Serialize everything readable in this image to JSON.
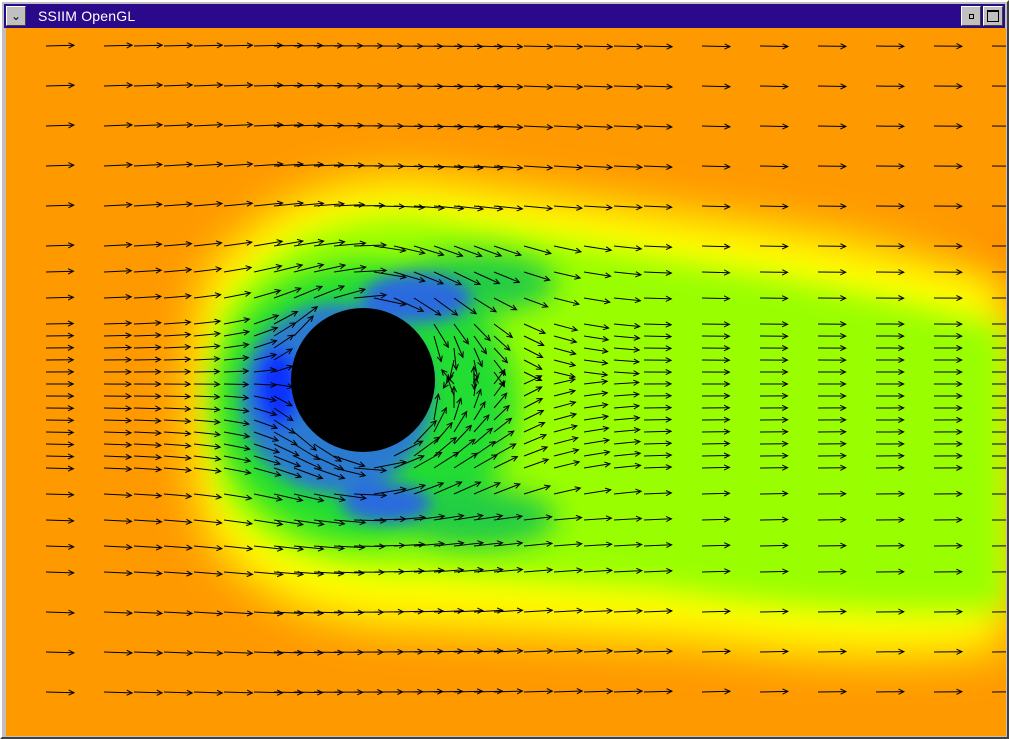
{
  "window": {
    "title": "SSIIM OpenGL",
    "sysmenu_icon": "chevron-down-icon",
    "minimize_icon": "minimize-icon",
    "maximize_icon": "maximize-icon"
  },
  "scene": {
    "background_color": "#ff9900",
    "obstacle_color": "#000000",
    "arrow_color": "#000000",
    "colormap": [
      "#ff9900",
      "#ffff00",
      "#99ff00",
      "#00cc44",
      "#2a6adf",
      "#0000ff"
    ]
  }
}
